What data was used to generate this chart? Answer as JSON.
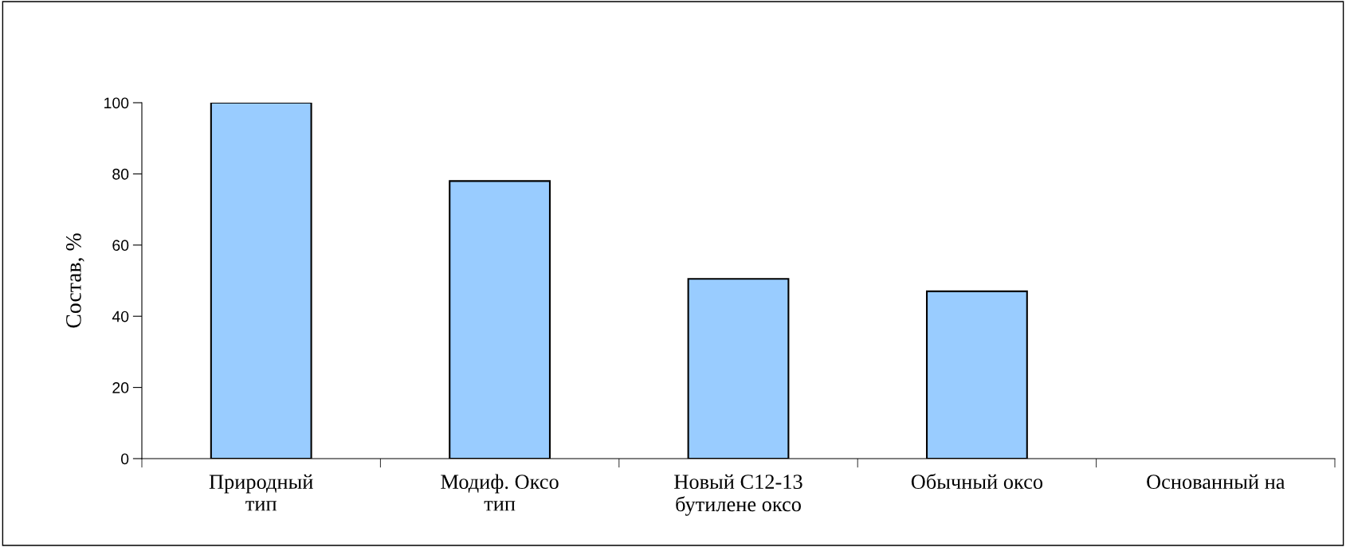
{
  "chart_data": {
    "type": "bar",
    "categories": [
      "Природный\nтип",
      "Модиф. Оксо\nтип",
      "Новый C12-13\nбутилене оксо",
      "Обычный оксо",
      "Основанный на"
    ],
    "values": [
      100,
      78,
      50.5,
      47,
      null
    ],
    "color": "#99ccff",
    "ylabel": "Состав, %",
    "ylim": [
      0,
      100
    ],
    "yticks": [
      0,
      20,
      40,
      60,
      80,
      100
    ],
    "grid": false,
    "legend": false
  }
}
